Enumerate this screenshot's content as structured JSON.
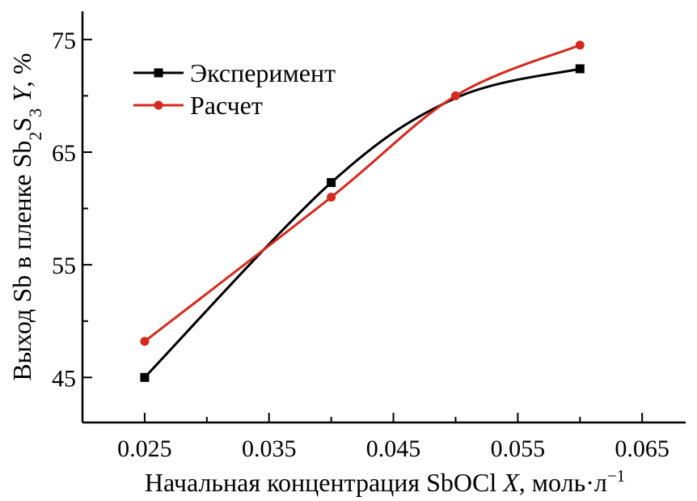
{
  "chart_data": {
    "type": "line",
    "title": "",
    "xlabel": {
      "main": "Начальная концентрация SbOCl ",
      "var": "X",
      "units": ", моль·л",
      "units_sup": "−1"
    },
    "ylabel": {
      "prefix": "Выход Sb в пленке Sb",
      "sub1": "2",
      "mid": "S",
      "sub2": "3",
      "space": " ",
      "var": "Y",
      "suffix": ", %"
    },
    "xlim": [
      0.02,
      0.0685
    ],
    "ylim": [
      41,
      77.5
    ],
    "x_ticks_major": [
      0.025,
      0.035,
      0.045,
      0.055,
      0.065
    ],
    "x_tick_labels": [
      "0.025",
      "0.035",
      "0.045",
      "0.055",
      "0.065"
    ],
    "x_ticks_minor": [
      0.03,
      0.04,
      0.05,
      0.06
    ],
    "y_ticks_major": [
      45,
      55,
      65,
      75
    ],
    "y_tick_labels": [
      "45",
      "55",
      "65",
      "75"
    ],
    "y_ticks_minor": [
      50,
      60,
      70
    ],
    "grid": false,
    "legend_position": "top-left",
    "series": [
      {
        "name": "Эксперимент",
        "color": "#000000",
        "marker": "square",
        "x": [
          0.025,
          0.04,
          0.05,
          0.06
        ],
        "y": [
          45.0,
          62.3,
          69.8,
          72.4
        ],
        "show_marker": [
          true,
          true,
          false,
          true
        ]
      },
      {
        "name": "Расчет",
        "color": "#d42a1e",
        "marker": "circle",
        "x": [
          0.025,
          0.04,
          0.05,
          0.06
        ],
        "y": [
          48.2,
          61.0,
          70.0,
          74.5
        ],
        "show_marker": [
          true,
          true,
          true,
          true
        ]
      }
    ]
  }
}
